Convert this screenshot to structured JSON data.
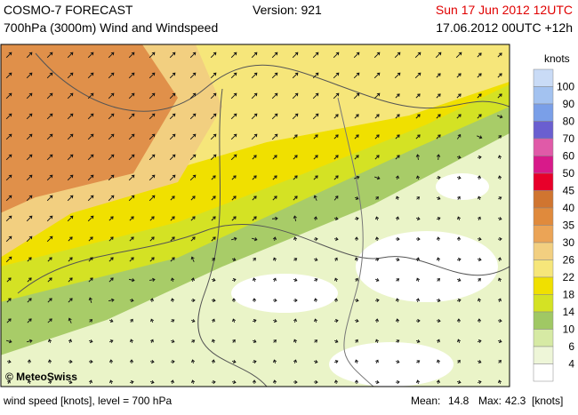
{
  "header": {
    "title": "COSMO-7 FORECAST",
    "subtitle": "700hPa (3000m) Wind and Windspeed",
    "version": "Version: 921",
    "valid_time": "Sun 17 Jun 2012 12UTC",
    "run_time": "17.06.2012 00UTC +12h"
  },
  "map": {
    "copyright": "© MeteoSwiss"
  },
  "legend": {
    "unit": "knots",
    "levels": [
      {
        "label": 100,
        "color": "#c9dbf6"
      },
      {
        "label": 90,
        "color": "#a3c2f0"
      },
      {
        "label": 80,
        "color": "#7a9fe8"
      },
      {
        "label": 70,
        "color": "#6a5fd0"
      },
      {
        "label": 60,
        "color": "#e05aa8"
      },
      {
        "label": 50,
        "color": "#d81a8a"
      },
      {
        "label": 45,
        "color": "#e8002a"
      },
      {
        "label": 40,
        "color": "#d07530"
      },
      {
        "label": 35,
        "color": "#e08a3c"
      },
      {
        "label": 30,
        "color": "#eba456"
      },
      {
        "label": 26,
        "color": "#f2cf80"
      },
      {
        "label": 22,
        "color": "#f6e67a"
      },
      {
        "label": 18,
        "color": "#f0e000"
      },
      {
        "label": 14,
        "color": "#d4e224"
      },
      {
        "label": 10,
        "color": "#a0c864"
      },
      {
        "label": 6,
        "color": "#d6eaa4"
      },
      {
        "label": 4,
        "color": "#eef6d8"
      }
    ]
  },
  "footer": {
    "description": "wind speed [knots], level = 700 hPa",
    "mean_label": "Mean:",
    "mean": "14.8",
    "max_label": "Max:",
    "max": "42.3",
    "unit": "[knots]"
  }
}
